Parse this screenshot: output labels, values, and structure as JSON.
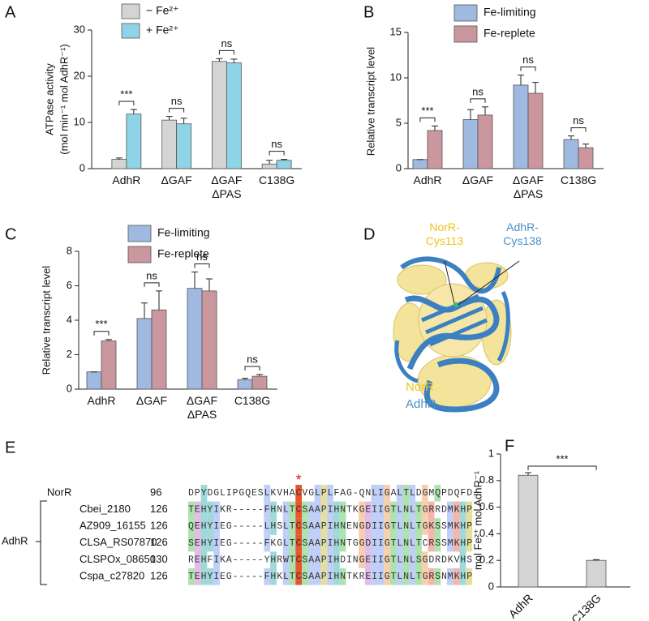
{
  "chart_data": [
    {
      "type": "bar",
      "panel": "A",
      "y_label": [
        "ATPase activity",
        "(mol min⁻¹ mol AdhR⁻¹)"
      ],
      "categories": [
        "AdhR",
        "ΔGAF",
        "ΔGAF\nΔPAS",
        "C138G"
      ],
      "series": [
        {
          "name": "− Fe²⁺",
          "color": "#d4d4d4",
          "values": [
            2.0,
            10.5,
            23.2,
            1.0
          ],
          "errors": [
            0.3,
            0.8,
            0.6,
            0.8
          ]
        },
        {
          "name": "+ Fe²⁺",
          "color": "#8ed4e6",
          "values": [
            11.8,
            9.7,
            22.9,
            1.8
          ],
          "errors": [
            1.0,
            1.2,
            0.8,
            0.2
          ]
        }
      ],
      "ylim": [
        0,
        30
      ],
      "yticks": [
        0,
        10,
        20,
        30
      ],
      "significance": [
        "***",
        "ns",
        "ns",
        "ns"
      ]
    },
    {
      "type": "bar",
      "panel": "B",
      "y_label": "Relative transcript level",
      "categories": [
        "AdhR",
        "ΔGAF",
        "ΔGAF\nΔPAS",
        "C138G"
      ],
      "series": [
        {
          "name": "Fe-limiting",
          "color": "#9fb9e0",
          "values": [
            1.0,
            5.4,
            9.2,
            3.2
          ],
          "errors": [
            0,
            1.1,
            1.1,
            0.4
          ]
        },
        {
          "name": "Fe-replete",
          "color": "#c9979d",
          "values": [
            4.2,
            5.9,
            8.3,
            2.3
          ],
          "errors": [
            0.5,
            0.9,
            1.2,
            0.4
          ]
        }
      ],
      "ylim": [
        0,
        15
      ],
      "yticks": [
        0,
        5,
        10,
        15
      ],
      "significance": [
        "***",
        "ns",
        "ns",
        "ns"
      ]
    },
    {
      "type": "bar",
      "panel": "C",
      "y_label": "Relative transcript level",
      "categories": [
        "AdhR",
        "ΔGAF",
        "ΔGAF\nΔPAS",
        "C138G"
      ],
      "series": [
        {
          "name": "Fe-limiting",
          "color": "#9fb9e0",
          "values": [
            1.0,
            4.1,
            5.85,
            0.55
          ],
          "errors": [
            0,
            0.9,
            0.95,
            0.08
          ]
        },
        {
          "name": "Fe-replete",
          "color": "#c9979d",
          "values": [
            2.8,
            4.6,
            5.7,
            0.75
          ],
          "errors": [
            0.08,
            1.1,
            0.7,
            0.1
          ]
        }
      ],
      "ylim": [
        0,
        8
      ],
      "yticks": [
        0,
        2,
        4,
        6,
        8
      ],
      "significance": [
        "***",
        "ns",
        "ns",
        "ns"
      ]
    },
    {
      "type": "bar",
      "panel": "F",
      "y_label": "mol Fe²⁺ mol AdhR⁻¹",
      "categories": [
        "AdhR",
        "C138G"
      ],
      "values": [
        0.84,
        0.2
      ],
      "errors": [
        0.02,
        0.005
      ],
      "color": "#d4d4d4",
      "ylim": [
        0,
        1
      ],
      "yticks": [
        0,
        0.2,
        0.4,
        0.6,
        0.8,
        1
      ],
      "significance": "***"
    }
  ],
  "structure": {
    "panel": "D",
    "site_labels": [
      {
        "text": "NorR-\nCys113",
        "color": "#f2c31c"
      },
      {
        "text": "AdhR-\nCys138",
        "color": "#4a90c8"
      }
    ],
    "legend": [
      {
        "text": "NorR",
        "color": "#f2c31c"
      },
      {
        "text": "AdhR",
        "color": "#4a90c8"
      }
    ]
  },
  "alignment": {
    "panel": "E",
    "marker": "*",
    "group_label": "AdhR",
    "rows": [
      {
        "name": "NorR",
        "start": 96,
        "sequence": "DPYDGLIPGQESLKVHACVGLPLFAG-QNLIGALTLDGMQPDQFD"
      },
      {
        "name": "Cbei_2180",
        "start": 126,
        "sequence": "TEHYIKR-----FHNLTCSAAPIHNTKGEIIGTLNLTGRRDMKHP"
      },
      {
        "name": "AZ909_16155",
        "start": 126,
        "sequence": "QEHYIEG-----LHSLTCSAAPIHNENGDIIGTLNLTGKSSMKHP"
      },
      {
        "name": "CLSA_RS07870",
        "start": 126,
        "sequence": "SEHYIEG-----FKGLTCSAAPIHNTGGDIIGTLNLTCRSSMKHP"
      },
      {
        "name": "CLSPOx_08650",
        "start": 130,
        "sequence": "REHFIKA-----YHRWTCSAAPIHDINGEIIGTLNLSGDRDKVHS"
      },
      {
        "name": "Cspa_c27820",
        "start": 126,
        "sequence": "TEHYIEG-----FHKLTCSAAPIHNTKREIIGTLNLTGRSNMKHP"
      }
    ]
  }
}
